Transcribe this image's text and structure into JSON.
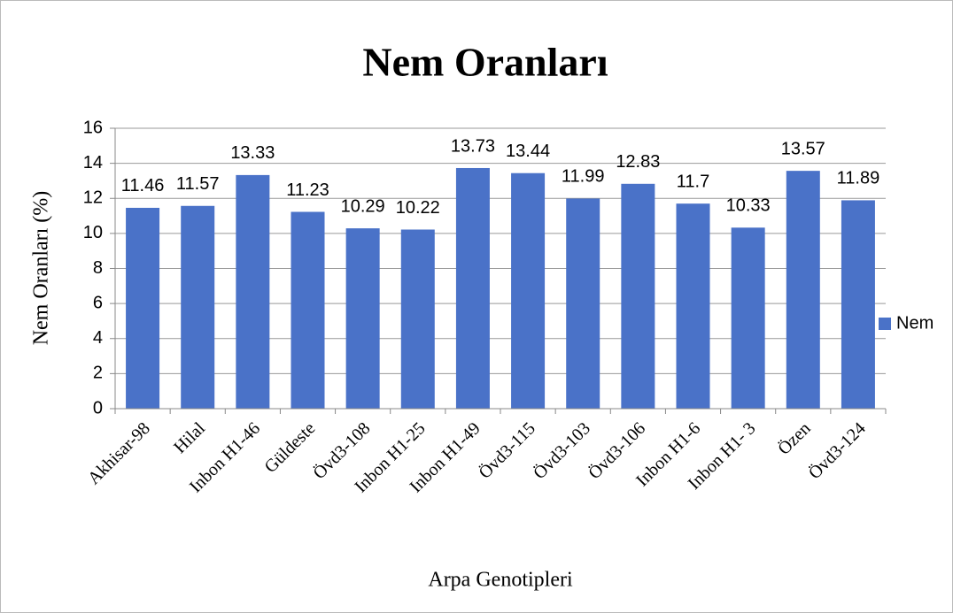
{
  "chart_data": {
    "type": "bar",
    "title": "Nem Oranları",
    "x_label": "Arpa Genotipleri",
    "y_label": "Nem Oranları (%)",
    "categories": [
      "Akhisar-98",
      "Hilal",
      "Inbon H1-46",
      "Güldeste",
      "Övd3-108",
      "Inbon H1-25",
      "Inbon H1-49",
      "Övd3-115",
      "Övd3-103",
      "Övd3-106",
      "Inbon H1-6",
      "Inbon H1- 3",
      "Özen",
      "Övd3-124"
    ],
    "series": [
      {
        "name": "Nem",
        "color": "#4a72c8",
        "values": [
          11.46,
          11.57,
          13.33,
          11.23,
          10.29,
          10.22,
          13.73,
          13.44,
          11.99,
          12.83,
          11.7,
          10.33,
          13.57,
          11.89
        ]
      }
    ],
    "ylim": [
      0,
      16
    ],
    "yticks": [
      0,
      2,
      4,
      6,
      8,
      10,
      12,
      14,
      16
    ],
    "grid": true,
    "legend": "right"
  }
}
